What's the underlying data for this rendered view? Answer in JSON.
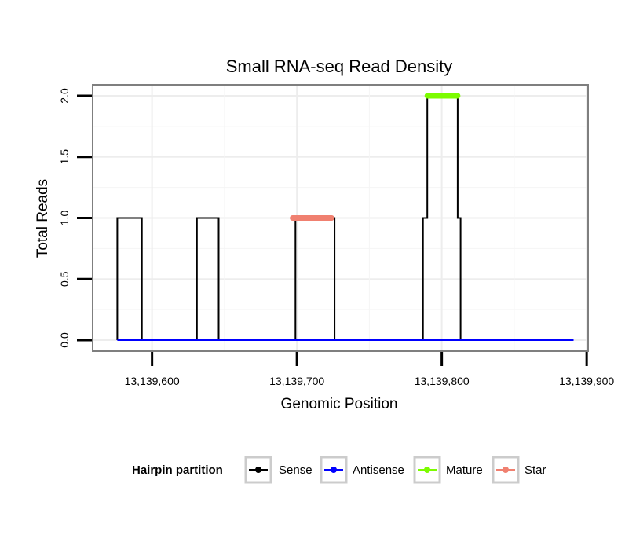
{
  "chart_data": {
    "type": "line",
    "title": "Small RNA-seq Read Density",
    "xlabel": "Genomic Position",
    "ylabel": "Total Reads",
    "xlim": [
      13139559,
      13139901
    ],
    "ylim": [
      -0.09,
      2.09
    ],
    "x_ticks": [
      13139600,
      13139700,
      13139800,
      13139900
    ],
    "x_tick_labels": [
      "13,139,600",
      "13,139,700",
      "13,139,800",
      "13,139,900"
    ],
    "y_ticks": [
      0,
      0.5,
      1,
      1.5,
      2
    ],
    "y_tick_labels": [
      "0.0",
      "0.5",
      "1.0",
      "1.5",
      "2.0"
    ],
    "grid": true,
    "legend": {
      "title": "Hairpin partition",
      "position": "bottom",
      "entries": [
        {
          "label": "Sense",
          "color": "#000000"
        },
        {
          "label": "Antisense",
          "color": "#0000ff"
        },
        {
          "label": "Mature",
          "color": "#7cfc00"
        },
        {
          "label": "Star",
          "color": "#f08070"
        }
      ]
    },
    "series": [
      {
        "name": "Sense",
        "color": "#000000",
        "x": [
          13139576,
          13139576,
          13139593,
          13139593,
          13139631,
          13139631,
          13139646,
          13139646,
          13139699,
          13139699,
          13139726,
          13139726,
          13139787,
          13139787,
          13139790,
          13139790,
          13139811,
          13139811,
          13139813,
          13139813,
          13139891
        ],
        "y": [
          0,
          1,
          1,
          0,
          0,
          1,
          1,
          0,
          0,
          1,
          1,
          0,
          0,
          1,
          1,
          2,
          2,
          1,
          1,
          0,
          0
        ]
      },
      {
        "name": "Antisense",
        "color": "#0000ff",
        "x": [
          13139576,
          13139891
        ],
        "y": [
          0,
          0
        ]
      },
      {
        "name": "Mature",
        "color": "#7cfc00",
        "x": [
          13139790,
          13139811
        ],
        "y": [
          2,
          2
        ]
      },
      {
        "name": "Star",
        "color": "#f08070",
        "x": [
          13139697,
          13139724
        ],
        "y": [
          1,
          1
        ]
      }
    ]
  }
}
